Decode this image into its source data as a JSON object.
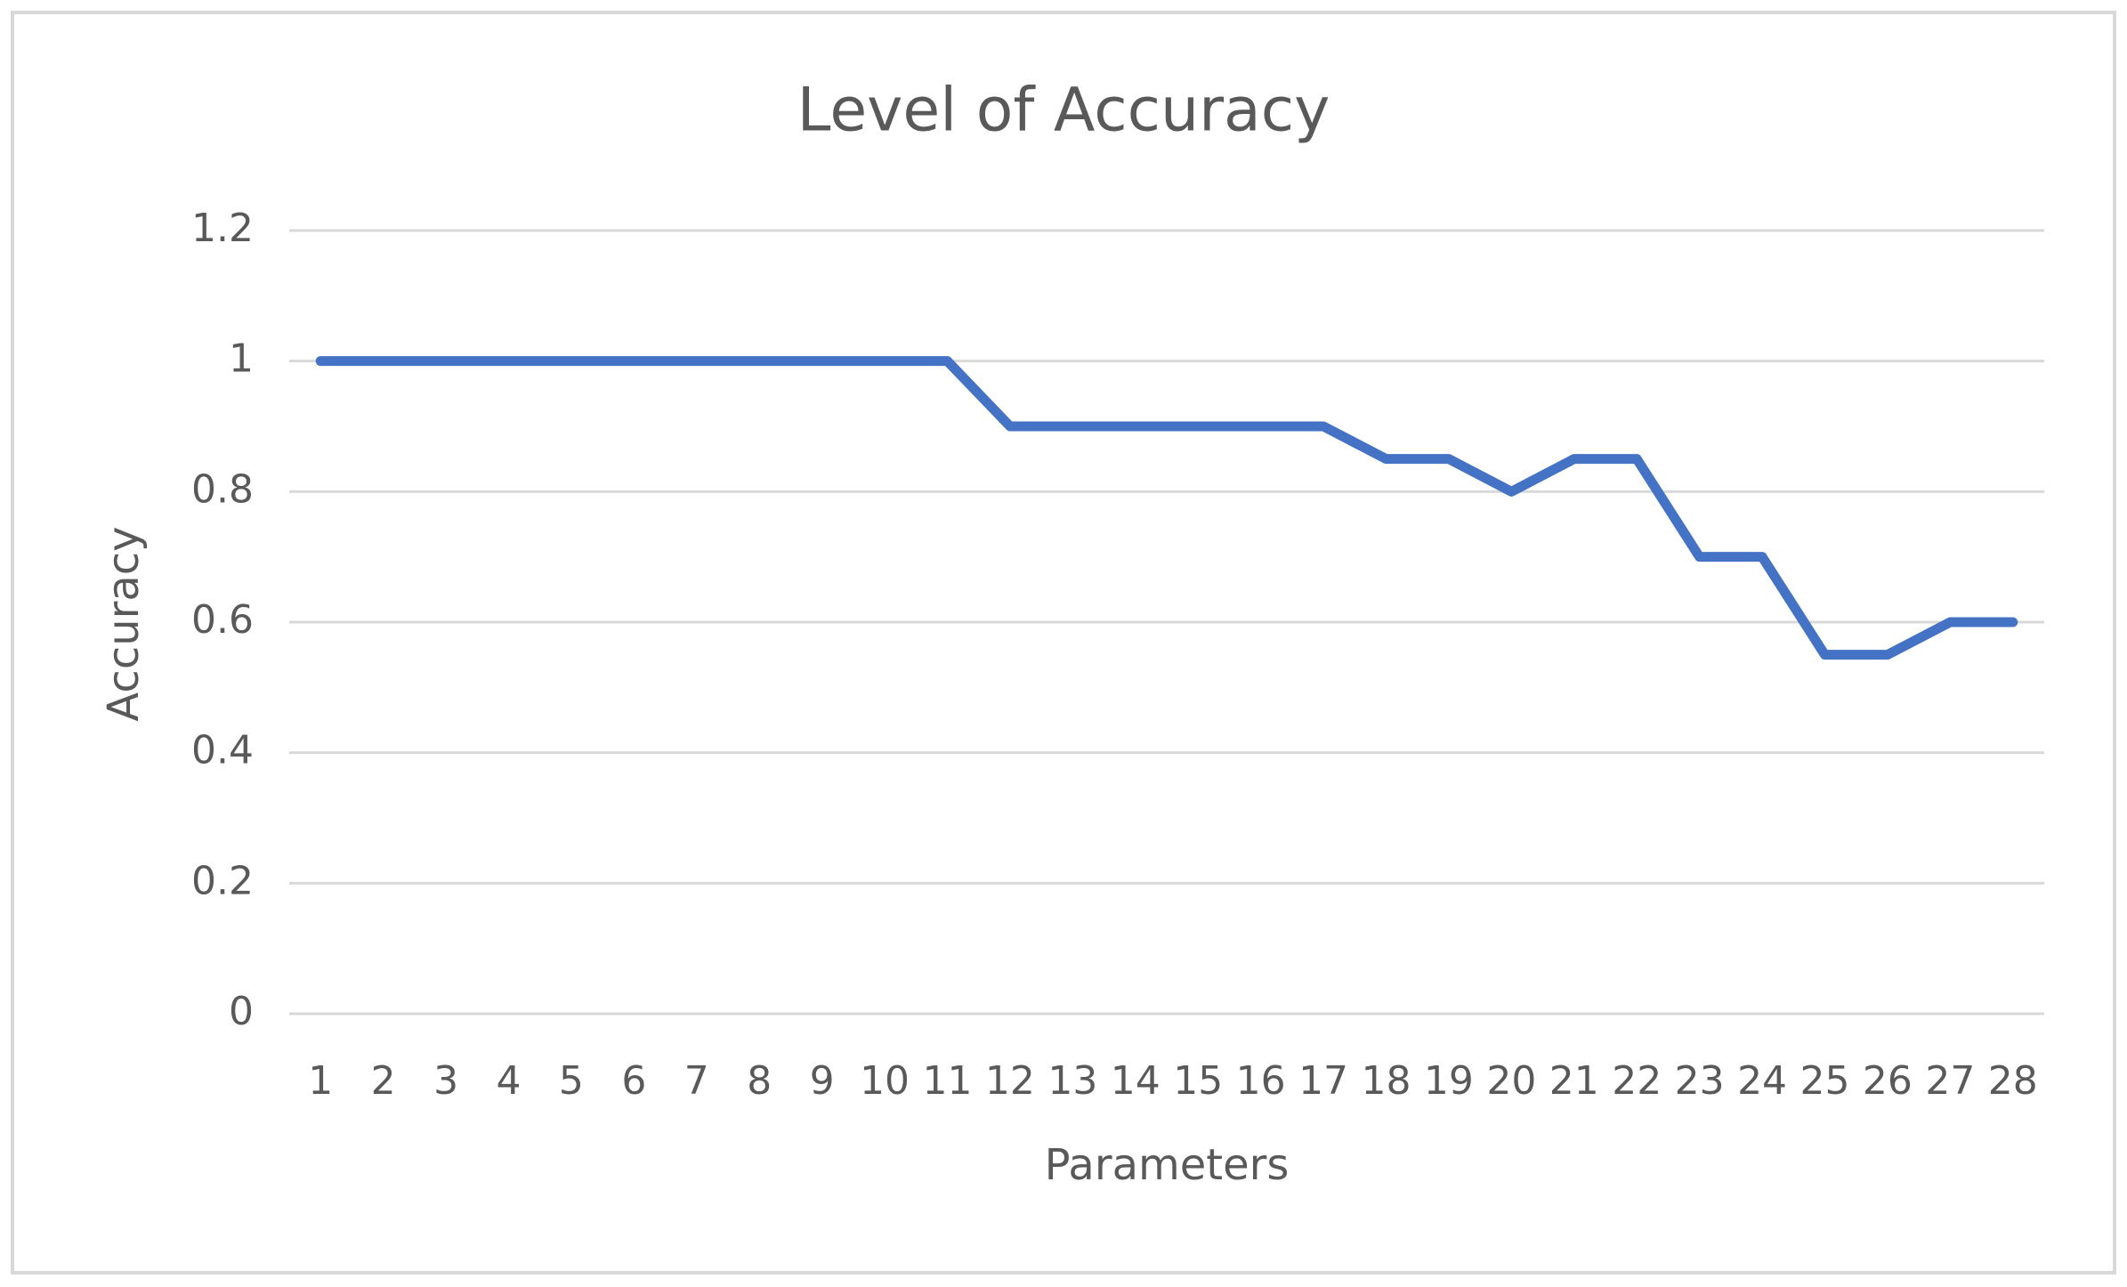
{
  "chart_data": {
    "type": "line",
    "title": "Level of Accuracy",
    "x_label": "Parameters",
    "y_label": "Accuracy",
    "categories": [
      "1",
      "2",
      "3",
      "4",
      "5",
      "6",
      "7",
      "8",
      "9",
      "10",
      "11",
      "12",
      "13",
      "14",
      "15",
      "16",
      "17",
      "18",
      "19",
      "20",
      "21",
      "22",
      "23",
      "24",
      "25",
      "26",
      "27",
      "28"
    ],
    "series": [
      {
        "color": "#4472c4",
        "values": [
          1,
          1,
          1,
          1,
          1,
          1,
          1,
          1,
          1,
          1,
          1,
          0.9,
          0.9,
          0.9,
          0.9,
          0.9,
          0.9,
          0.85,
          0.85,
          0.8,
          0.85,
          0.85,
          0.7,
          0.7,
          0.55,
          0.55,
          0.6,
          0.6
        ]
      }
    ],
    "ylim": [
      0,
      1.2
    ],
    "yticks": [
      0,
      0.2,
      0.4,
      0.6,
      0.8,
      1,
      1.2
    ],
    "grid": true
  }
}
